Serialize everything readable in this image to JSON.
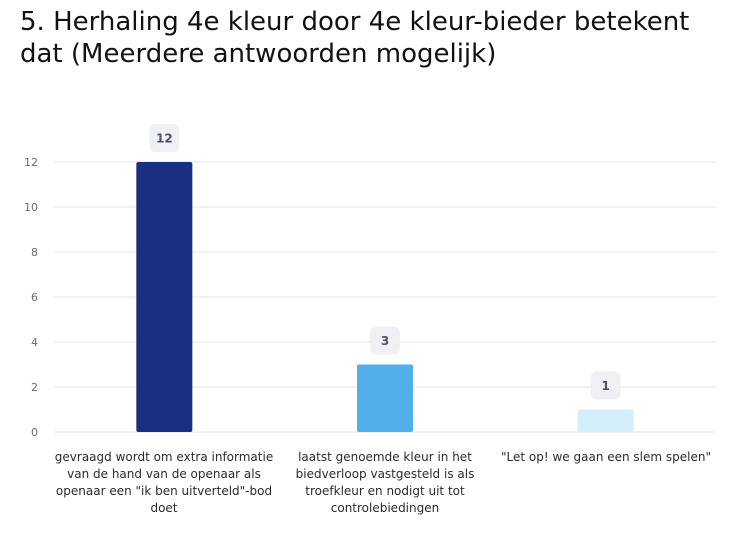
{
  "chart_data": {
    "type": "bar",
    "title": "5. Herhaling 4e kleur door 4e kleur-bieder betekent dat (Meerdere antwoorden mogelijk)",
    "categories": [
      "gevraagd wordt om extra informatie van de hand van de openaar als openaar een \"ik ben uitverteld\"-bod doet",
      "laatst genoemde kleur in het biedverloop vastgesteld is als troefkleur en nodigt uit tot controlebiedingen",
      "\"Let op! we gaan een slem spelen\""
    ],
    "values": [
      12,
      3,
      1
    ],
    "value_labels": [
      "12",
      "3",
      "1"
    ],
    "bar_colors": [
      "#1b2f80",
      "#52aee8",
      "#d3eef9"
    ],
    "ylim": [
      0,
      12
    ],
    "yticks": [
      "0",
      "2",
      "4",
      "6",
      "8",
      "10",
      "12"
    ],
    "xlabel": "",
    "ylabel": "",
    "grid": true,
    "legend": "none"
  }
}
